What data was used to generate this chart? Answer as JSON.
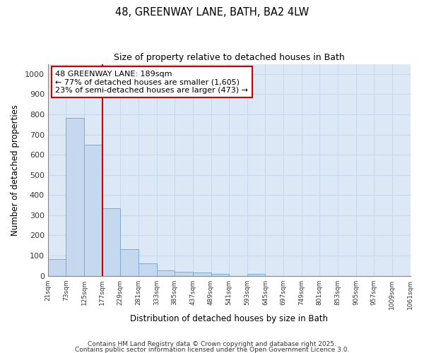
{
  "title_line1": "48, GREENWAY LANE, BATH, BA2 4LW",
  "title_line2": "Size of property relative to detached houses in Bath",
  "xlabel": "Distribution of detached houses by size in Bath",
  "ylabel": "Number of detached properties",
  "bar_values": [
    83,
    783,
    648,
    335,
    133,
    62,
    25,
    18,
    15,
    8,
    0,
    10,
    0,
    0,
    0,
    0,
    0,
    0,
    0,
    0
  ],
  "bin_labels": [
    "21sqm",
    "73sqm",
    "125sqm",
    "177sqm",
    "229sqm",
    "281sqm",
    "333sqm",
    "385sqm",
    "437sqm",
    "489sqm",
    "541sqm",
    "593sqm",
    "645sqm",
    "697sqm",
    "749sqm",
    "801sqm",
    "853sqm",
    "905sqm",
    "957sqm",
    "1009sqm",
    "1061sqm"
  ],
  "bar_color": "#c5d8ef",
  "bar_edge_color": "#7aadd4",
  "red_line_x": 3.0,
  "annotation_text": "48 GREENWAY LANE: 189sqm\n← 77% of detached houses are smaller (1,605)\n23% of semi-detached houses are larger (473) →",
  "annotation_box_color": "#ffffff",
  "annotation_box_edge": "#cc0000",
  "red_line_color": "#cc0000",
  "ylim": [
    0,
    1050
  ],
  "yticks": [
    0,
    100,
    200,
    300,
    400,
    500,
    600,
    700,
    800,
    900,
    1000
  ],
  "grid_color": "#c8d8ec",
  "background_color": "#dce8f5",
  "fig_background": "#ffffff",
  "footer_line1": "Contains HM Land Registry data © Crown copyright and database right 2025.",
  "footer_line2": "Contains public sector information licensed under the Open Government Licence 3.0."
}
